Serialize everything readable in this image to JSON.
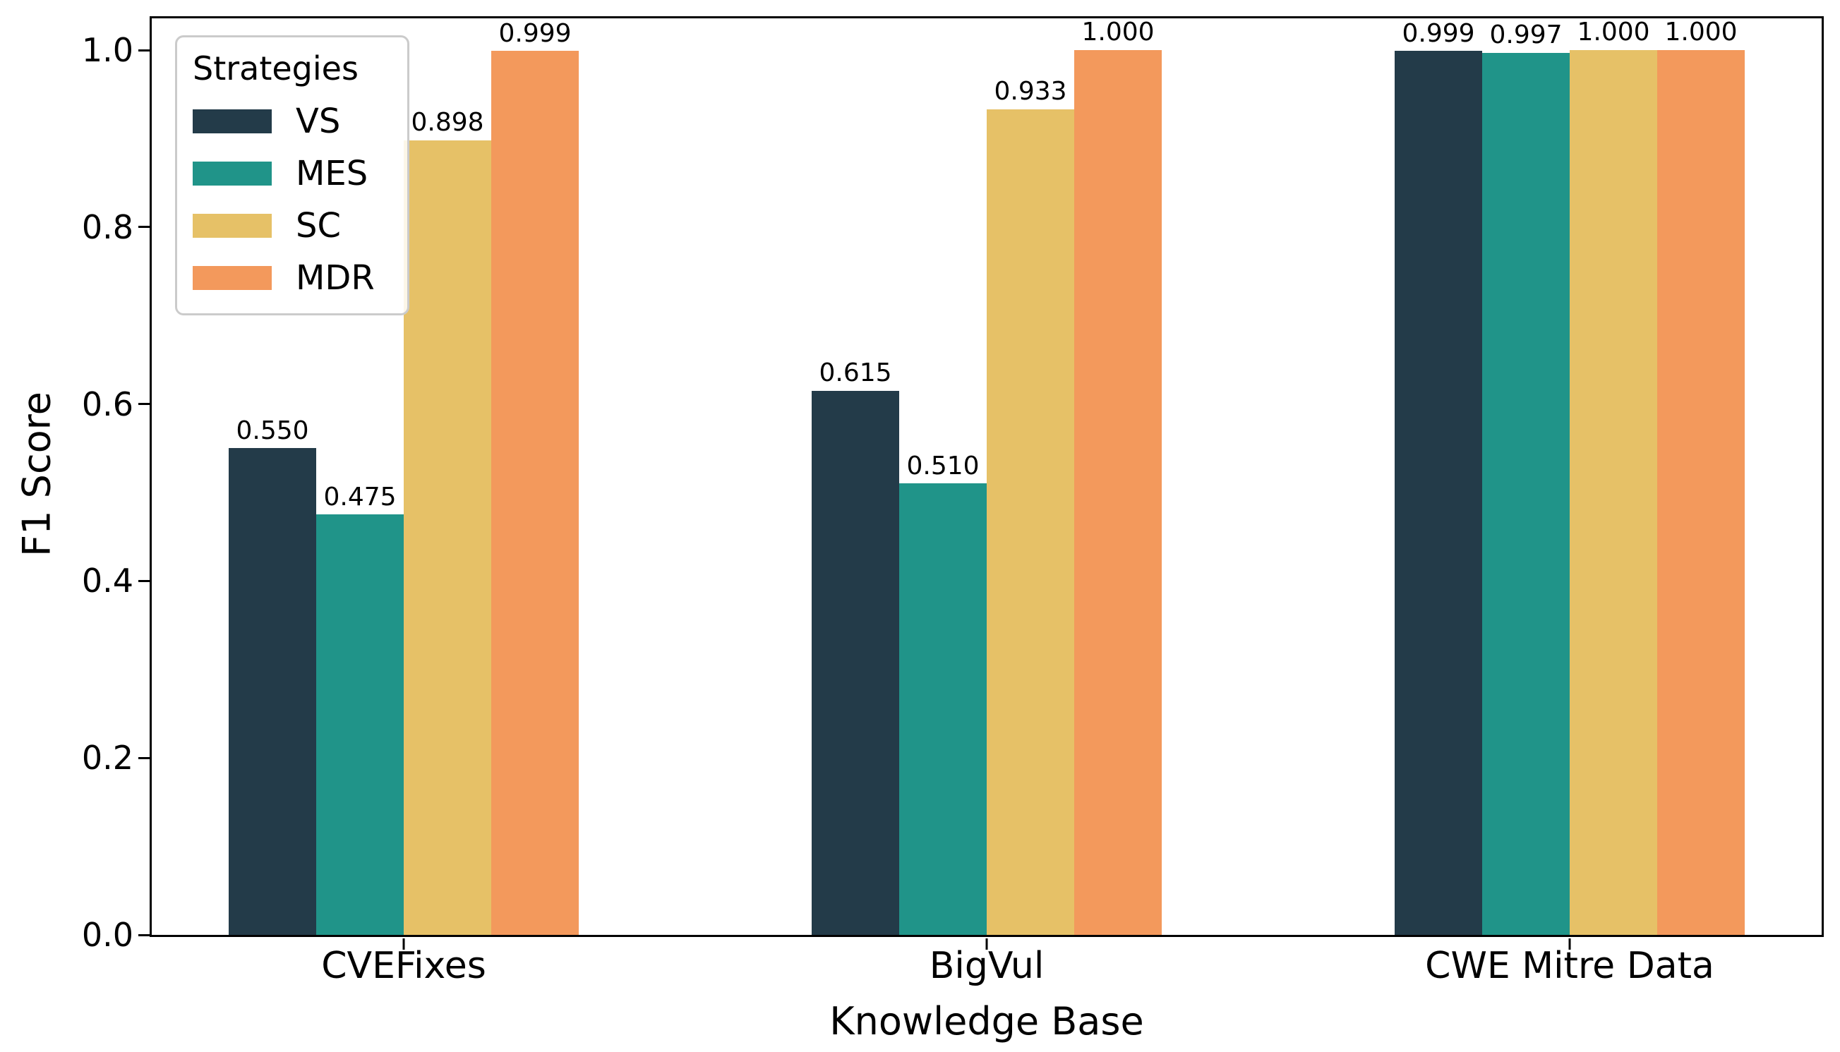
{
  "chart_data": {
    "type": "bar",
    "title": "",
    "xlabel": "Knowledge Base",
    "ylabel": "F1 Score",
    "categories": [
      "CVEFixes",
      "BigVul",
      "CWE Mitre Data"
    ],
    "series": [
      {
        "name": "VS",
        "color": "#233b49",
        "values": [
          0.55,
          0.615,
          0.999
        ]
      },
      {
        "name": "MES",
        "color": "#209489",
        "values": [
          0.475,
          0.51,
          0.997
        ]
      },
      {
        "name": "SC",
        "color": "#e6c167",
        "values": [
          0.898,
          0.933,
          1.0
        ]
      },
      {
        "name": "MDR",
        "color": "#f3995c",
        "values": [
          0.999,
          1.0,
          1.0
        ]
      }
    ],
    "value_label_decimals": 3,
    "value_labels": [
      [
        "0.550",
        "0.475",
        "0.898",
        "0.999"
      ],
      [
        "0.615",
        "0.510",
        "0.933",
        "1.000"
      ],
      [
        "0.999",
        "0.997",
        "1.000",
        "1.000"
      ]
    ],
    "legend_title": "Strategies",
    "legend_position": "upper-left",
    "yticks": [
      "0.0",
      "0.2",
      "0.4",
      "0.6",
      "0.8",
      "1.0"
    ],
    "ylim": [
      0.0,
      1.036
    ],
    "grid": false,
    "axis_color": "#000000",
    "legend_border_color": "#cbcbcb"
  }
}
